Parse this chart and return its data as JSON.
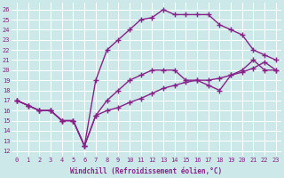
{
  "bg_color": "#cce8e8",
  "grid_color": "#ffffff",
  "line_color": "#882288",
  "marker": "+",
  "linewidth": 1.0,
  "markersize": 4,
  "markeredgewidth": 1.0,
  "xlabel": "Windchill (Refroidissement éolien,°C)",
  "xlabel_fontsize": 5.5,
  "tick_fontsize": 5.0,
  "ylabel_ticks": [
    12,
    13,
    14,
    15,
    16,
    17,
    18,
    19,
    20,
    21,
    22,
    23,
    24,
    25,
    26
  ],
  "xticks": [
    0,
    1,
    2,
    3,
    4,
    5,
    6,
    7,
    8,
    9,
    10,
    11,
    12,
    13,
    14,
    15,
    16,
    17,
    18,
    19,
    20,
    21,
    22,
    23
  ],
  "xlim": [
    -0.5,
    23.5
  ],
  "ylim": [
    11.5,
    26.7
  ],
  "line1_x": [
    0,
    1,
    2,
    3,
    4,
    5,
    6,
    7,
    8,
    9,
    10,
    11,
    12,
    13,
    14,
    15,
    16,
    17,
    18,
    19,
    20,
    21,
    22,
    23
  ],
  "line1_y": [
    17,
    16.5,
    16,
    16,
    15,
    15,
    12.5,
    15.5,
    17,
    18,
    19,
    19.5,
    20,
    20,
    20,
    19,
    19,
    18.5,
    18,
    19.5,
    20,
    21,
    20,
    20
  ],
  "line2_x": [
    0,
    1,
    2,
    3,
    4,
    5,
    6,
    7,
    8,
    9,
    10,
    11,
    12,
    13,
    14,
    15,
    16,
    17,
    18,
    19,
    20,
    21,
    22,
    23
  ],
  "line2_y": [
    17,
    16.5,
    16,
    16,
    15,
    15,
    12.5,
    19,
    22,
    23,
    24,
    25,
    25.2,
    26,
    25.5,
    25.5,
    25.5,
    25.5,
    24.5,
    24,
    23.5,
    22,
    21.5,
    21
  ],
  "line3_x": [
    0,
    1,
    2,
    3,
    4,
    5,
    6,
    7,
    8,
    9,
    10,
    11,
    12,
    13,
    14,
    15,
    16,
    17,
    18,
    19,
    20,
    21,
    22,
    23
  ],
  "line3_y": [
    17,
    16.5,
    16,
    16,
    15,
    15,
    12.5,
    15.5,
    16,
    16.3,
    16.8,
    17.2,
    17.7,
    18.2,
    18.5,
    18.8,
    19.0,
    19.0,
    19.2,
    19.5,
    19.8,
    20.2,
    20.8,
    20.0
  ]
}
